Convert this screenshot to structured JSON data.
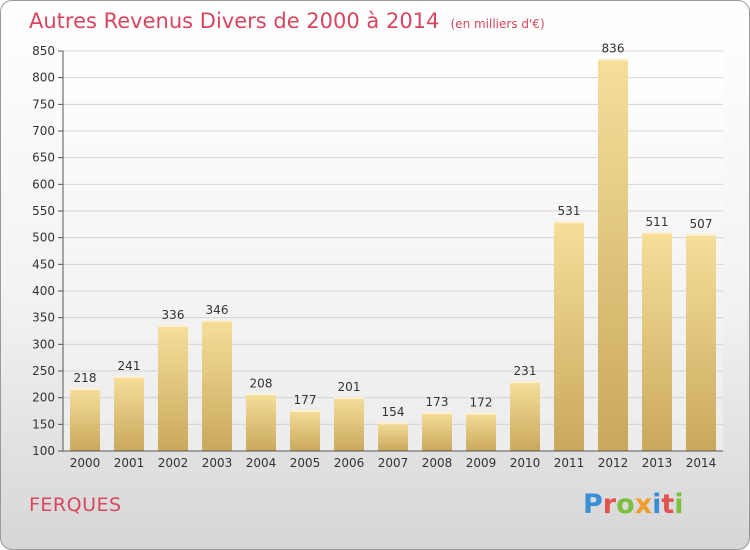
{
  "title": "Autres Revenus Divers de 2000 à 2014",
  "unit": "(en milliers d'€)",
  "city": "FERQUES",
  "logo": {
    "letters": [
      {
        "ch": "P",
        "color": "#3a8fd6"
      },
      {
        "ch": "r",
        "color": "#e0544f"
      },
      {
        "ch": "o",
        "color": "#7cbf3f"
      },
      {
        "ch": "x",
        "color": "#f29c2c"
      },
      {
        "ch": "i",
        "color": "#3a8fd6"
      },
      {
        "ch": "t",
        "color": "#e0544f"
      },
      {
        "ch": "i",
        "color": "#7cbf3f"
      }
    ]
  },
  "chart_data": {
    "type": "bar",
    "categories": [
      "2000",
      "2001",
      "2002",
      "2003",
      "2004",
      "2005",
      "2006",
      "2007",
      "2008",
      "2009",
      "2010",
      "2011",
      "2012",
      "2013",
      "2014"
    ],
    "values": [
      218,
      241,
      336,
      346,
      208,
      177,
      201,
      154,
      173,
      172,
      231,
      531,
      836,
      511,
      507
    ],
    "ylim": [
      100,
      850
    ],
    "yticks": [
      100,
      150,
      200,
      250,
      300,
      350,
      400,
      450,
      500,
      550,
      600,
      650,
      700,
      750,
      800,
      850
    ],
    "grid": true,
    "bar_color": "#e6c97a"
  }
}
